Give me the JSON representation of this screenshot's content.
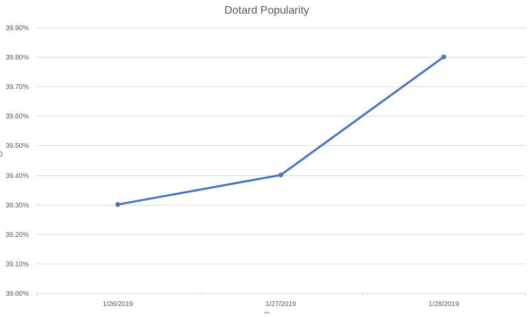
{
  "chart_data": {
    "type": "line",
    "title": "Dotard Popularity",
    "xlabel": "",
    "ylabel": "",
    "categories": [
      "1/26/2019",
      "1/27/2019",
      "1/28/2019"
    ],
    "series": [
      {
        "values": [
          39.3,
          39.4,
          39.8
        ],
        "color": "#4472c4"
      }
    ],
    "y_ticks": [
      "39.00%",
      "39.10%",
      "39.20%",
      "39.30%",
      "39.40%",
      "39.50%",
      "39.60%",
      "39.70%",
      "39.80%",
      "39.90%"
    ],
    "ylim": [
      39.0,
      39.9
    ],
    "y_step": 0.1,
    "grid": true,
    "legend": "none"
  }
}
